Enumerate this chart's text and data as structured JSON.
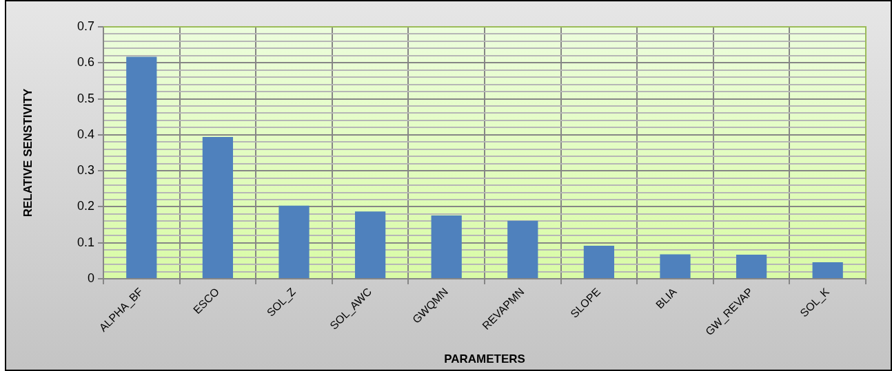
{
  "chart_data": {
    "type": "bar",
    "xlabel": "PARAMETERS",
    "ylabel": "RELATIVE SENSTIVITY",
    "categories": [
      "ALPHA_BF",
      "ESCO",
      "SOL_Z",
      "SOL_AWC",
      "GWQMN",
      "REVAPMN",
      "SLOPE",
      "BLIA",
      "GW_REVAP",
      "SOL_K"
    ],
    "values": [
      0.617,
      0.394,
      0.203,
      0.187,
      0.176,
      0.161,
      0.092,
      0.068,
      0.067,
      0.046
    ],
    "color": "#4f81bd",
    "ylim": [
      0,
      0.7
    ],
    "yticks": [
      0,
      {
        "value": 0.02,
        "label": null
      },
      {
        "value": 0.04,
        "label": null
      },
      {
        "value": 0.06,
        "label": null
      },
      {
        "value": 0.08,
        "label": null
      },
      0.1,
      {
        "value": 0.12,
        "label": null
      },
      {
        "value": 0.14,
        "label": null
      },
      {
        "value": 0.16,
        "label": null
      },
      {
        "value": 0.18,
        "label": null
      },
      0.2,
      {
        "value": 0.22,
        "label": null
      },
      {
        "value": 0.24,
        "label": null
      },
      {
        "value": 0.26,
        "label": null
      },
      {
        "value": 0.28,
        "label": null
      },
      0.3,
      {
        "value": 0.32,
        "label": null
      },
      {
        "value": 0.34,
        "label": null
      },
      {
        "value": 0.36,
        "label": null
      },
      {
        "value": 0.38,
        "label": null
      },
      0.4,
      {
        "value": 0.42,
        "label": null
      },
      {
        "value": 0.44,
        "label": null
      },
      {
        "value": 0.46,
        "label": null
      },
      {
        "value": 0.48,
        "label": null
      },
      0.5,
      {
        "value": 0.52,
        "label": null
      },
      {
        "value": 0.54,
        "label": null
      },
      {
        "value": 0.56,
        "label": null
      },
      {
        "value": 0.58,
        "label": null
      },
      0.6,
      {
        "value": 0.62,
        "label": null
      },
      {
        "value": 0.64,
        "label": null
      },
      {
        "value": 0.66,
        "label": null
      },
      {
        "value": 0.68,
        "label": null
      },
      0.7
    ],
    "grid": true
  }
}
